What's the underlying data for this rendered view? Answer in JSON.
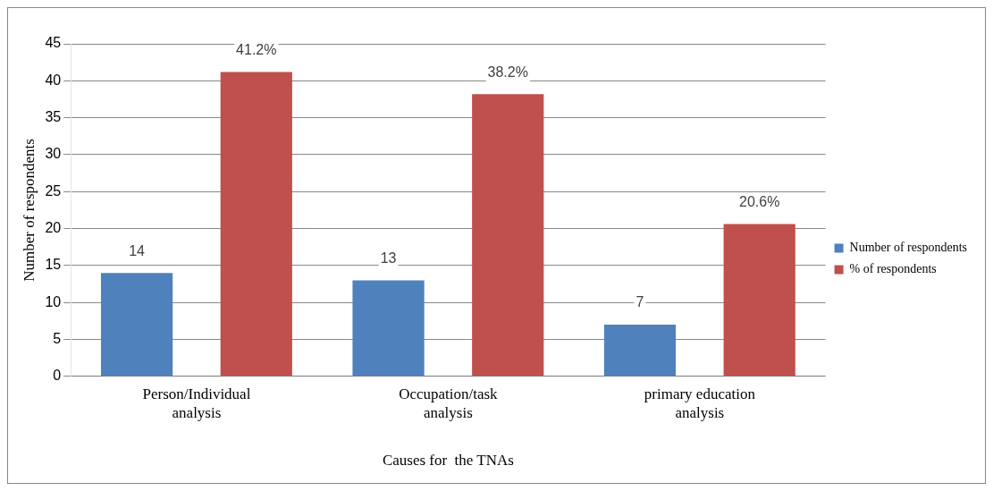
{
  "chart_data": {
    "type": "bar",
    "xlabel": "Causes for  the TNAs",
    "ylabel": "Number of respondents",
    "categories": [
      "Person/Individual analysis",
      "Occupation/task analysis",
      "primary education analysis"
    ],
    "series": [
      {
        "name": "Number of respondents",
        "color": "#4f81bd",
        "values": [
          14,
          13,
          7
        ],
        "value_labels": [
          "14",
          "13",
          "7"
        ]
      },
      {
        "name": "% of respondents",
        "color": "#c0504d",
        "values": [
          41.2,
          38.2,
          20.6
        ],
        "value_labels": [
          "41.2%",
          "38.2%",
          "20.6%"
        ]
      }
    ],
    "ylim": [
      0,
      45
    ],
    "yticks": [
      0,
      5,
      10,
      15,
      20,
      25,
      30,
      35,
      40,
      45
    ],
    "grid": "y",
    "legend": "right"
  }
}
